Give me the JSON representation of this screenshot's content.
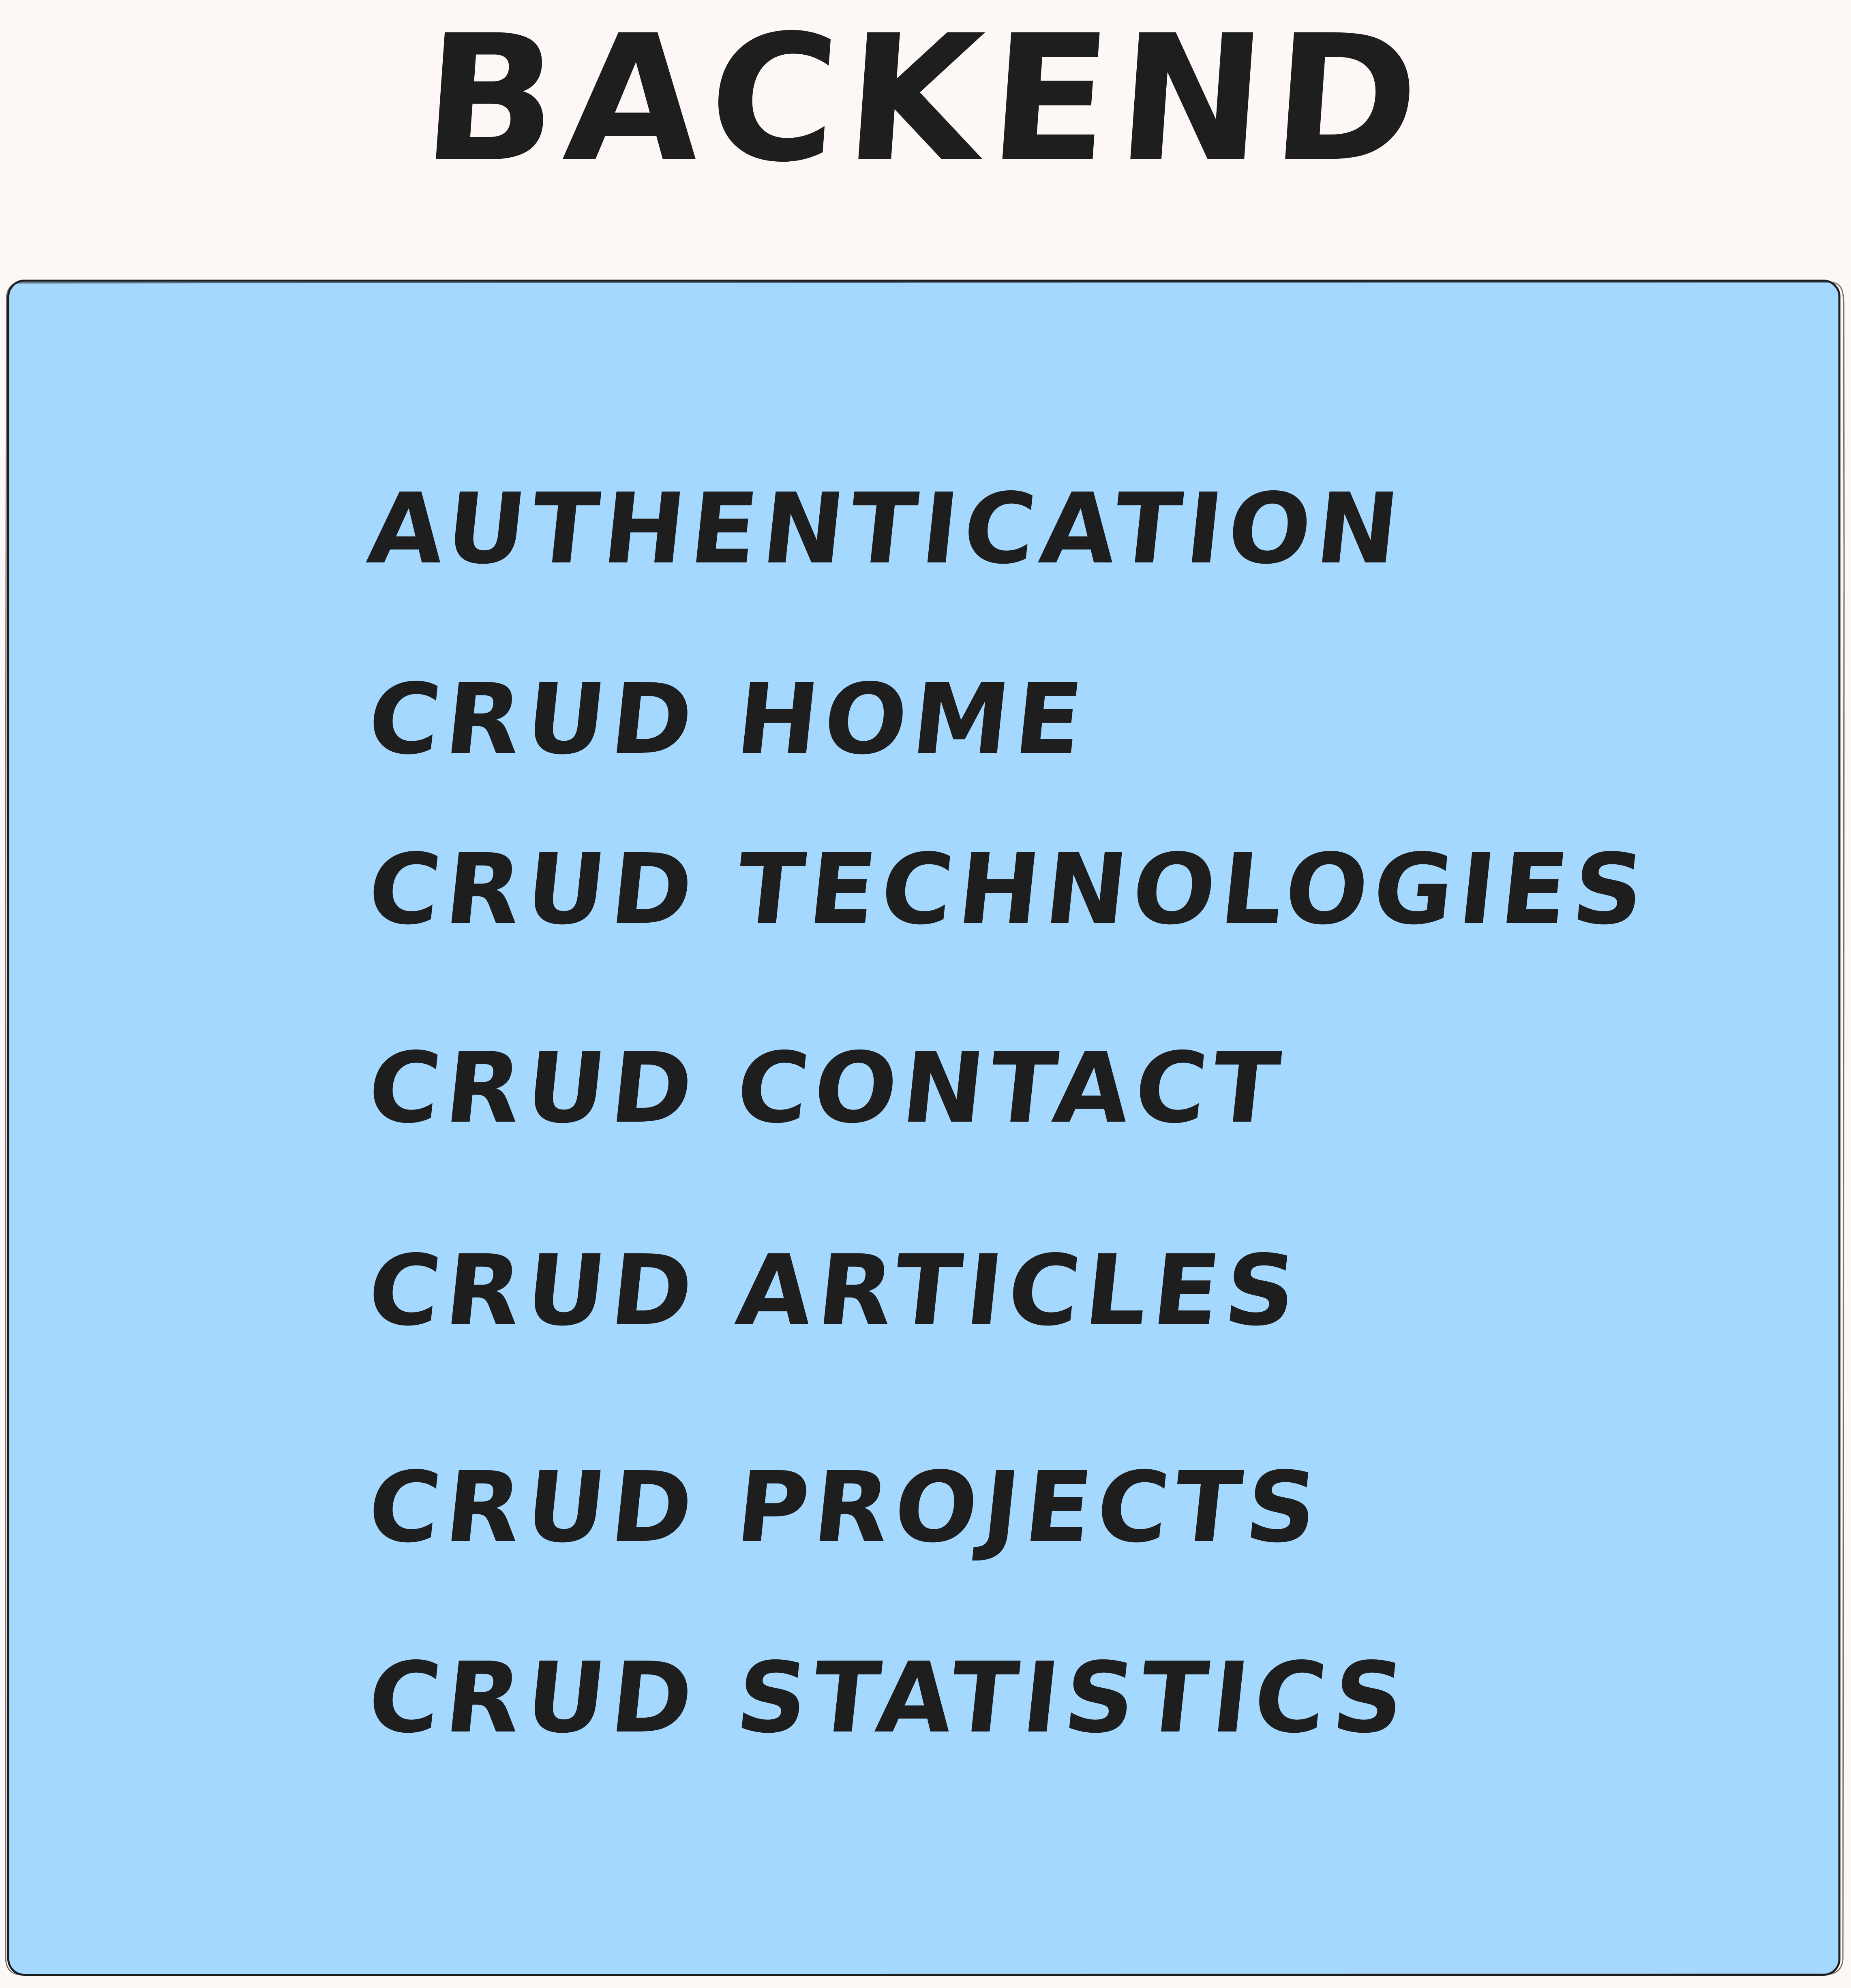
{
  "title": "BACKEND",
  "colors": {
    "background": "#fdf8f6",
    "panel_fill": "#a5d8ff",
    "stroke": "#1e1e1e"
  },
  "items": [
    {
      "label": "AUTHENTICATION"
    },
    {
      "label": "CRUD HOME"
    },
    {
      "label": "CRUD TECHNOLOGIES"
    },
    {
      "label": "CRUD CONTACT"
    },
    {
      "label": "CRUD ARTICLES"
    },
    {
      "label": "CRUD PROJECTS"
    },
    {
      "label": "CRUD STATISTICS"
    }
  ]
}
